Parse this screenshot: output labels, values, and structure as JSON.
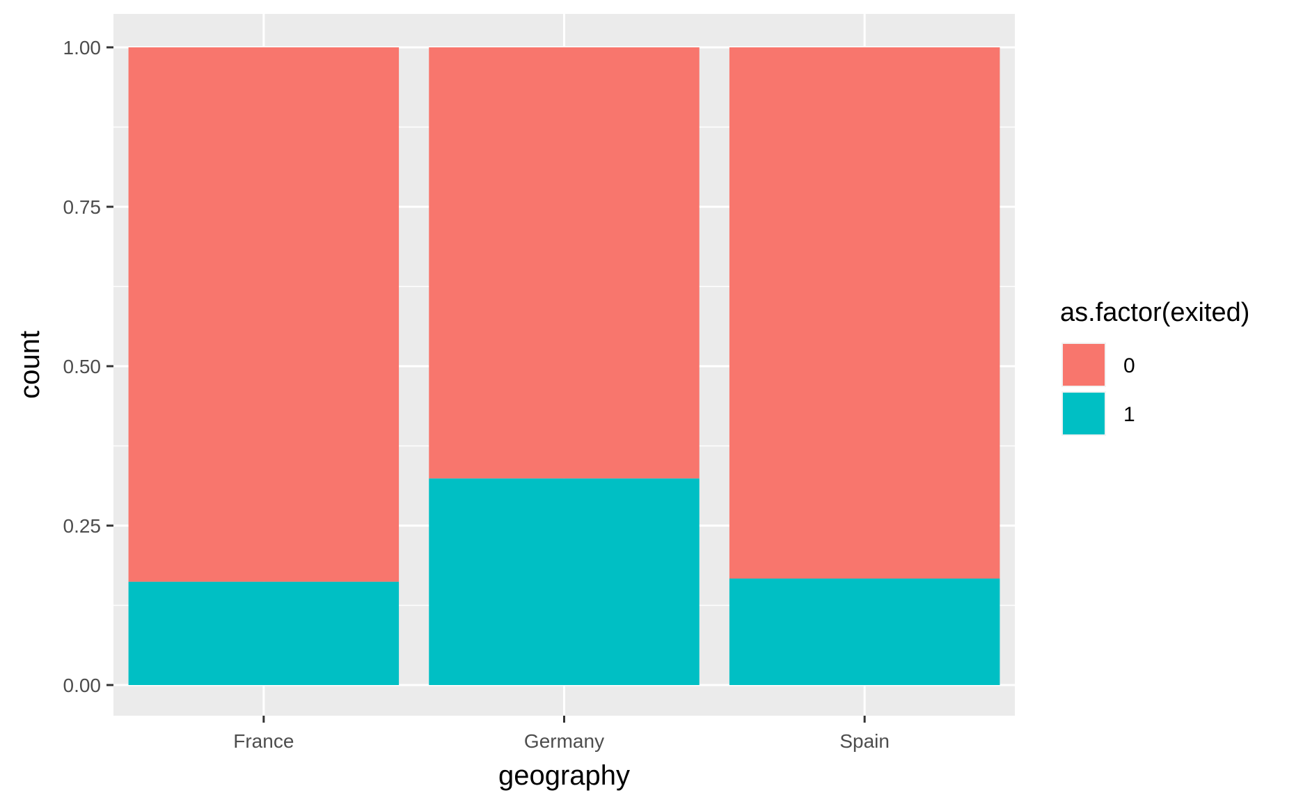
{
  "chart_data": {
    "type": "bar",
    "stacked": true,
    "position": "fill",
    "categories": [
      "France",
      "Germany",
      "Spain"
    ],
    "series": [
      {
        "name": "0",
        "color": "#F8766D",
        "values": [
          0.838,
          0.676,
          0.833
        ]
      },
      {
        "name": "1",
        "color": "#00BFC4",
        "values": [
          0.162,
          0.324,
          0.167
        ]
      }
    ],
    "xlabel": "geography",
    "ylabel": "count",
    "ylim": [
      0,
      1
    ],
    "yticks": [
      0.0,
      0.25,
      0.5,
      0.75,
      1.0
    ],
    "ytick_labels": [
      "0.00",
      "0.25",
      "0.50",
      "0.75",
      "1.00"
    ],
    "grid": true,
    "legend": {
      "title": "as.factor(exited)",
      "placement": "right"
    },
    "panel_background": "#EBEBEB"
  }
}
